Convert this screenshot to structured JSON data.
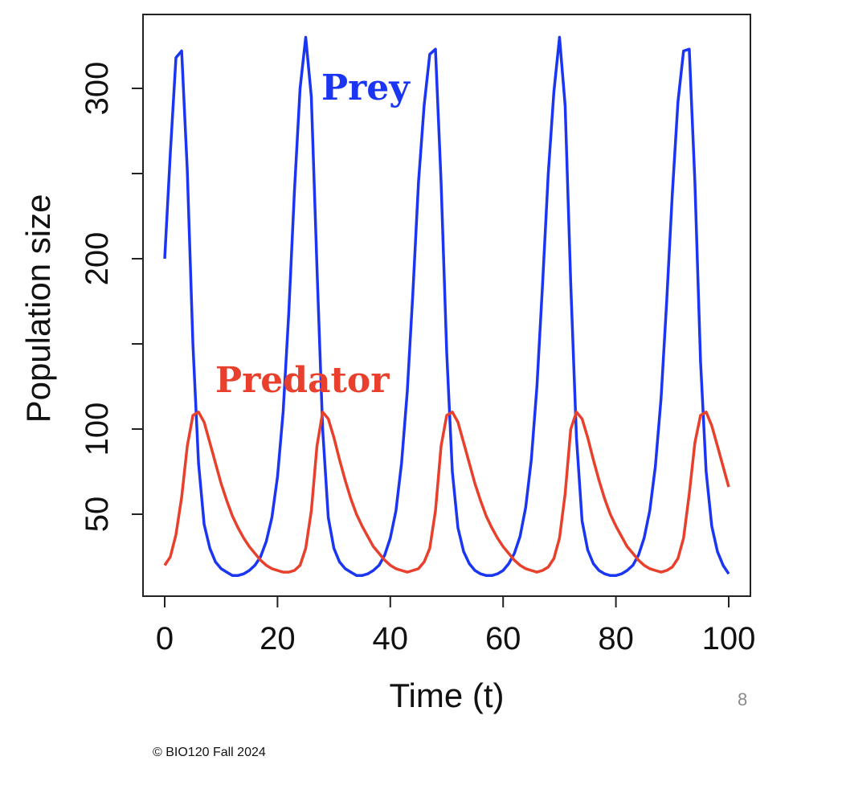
{
  "chart_data": {
    "type": "line",
    "title": "",
    "xlabel": "Time (t)",
    "ylabel": "Population size",
    "xlim": [
      0,
      100
    ],
    "ylim": [
      0,
      335
    ],
    "x_ticks": [
      0,
      20,
      40,
      60,
      80,
      100
    ],
    "y_ticks": [
      50,
      100,
      150,
      200,
      250,
      300
    ],
    "y_tick_labels": [
      "50",
      "100",
      "",
      "200",
      "",
      "300"
    ],
    "grid": false,
    "legend": "none (inline annotations)",
    "annotations": [
      {
        "text": "Prey",
        "series": "Prey",
        "color": "#1a36f2"
      },
      {
        "text": "Predator",
        "series": "Predator",
        "color": "#e8402c"
      }
    ],
    "x": [
      0,
      1,
      2,
      3,
      4,
      5,
      6,
      7,
      8,
      9,
      10,
      11,
      12,
      13,
      14,
      15,
      16,
      17,
      18,
      19,
      20,
      21,
      22,
      23,
      24,
      25,
      26,
      27,
      28,
      29,
      30,
      31,
      32,
      33,
      34,
      35,
      36,
      37,
      38,
      39,
      40,
      41,
      42,
      43,
      44,
      45,
      46,
      47,
      48,
      49,
      50,
      51,
      52,
      53,
      54,
      55,
      56,
      57,
      58,
      59,
      60,
      61,
      62,
      63,
      64,
      65,
      66,
      67,
      68,
      69,
      70,
      71,
      72,
      73,
      74,
      75,
      76,
      77,
      78,
      79,
      80,
      81,
      82,
      83,
      84,
      85,
      86,
      87,
      88,
      89,
      90,
      91,
      92,
      93,
      94,
      95,
      96,
      97,
      98,
      99,
      100
    ],
    "series": [
      {
        "name": "Prey",
        "color": "#1a36f2",
        "values": [
          200,
          262,
          318,
          322,
          252,
          150,
          80,
          44,
          30,
          22,
          18,
          16,
          14,
          14,
          15,
          17,
          20,
          25,
          34,
          48,
          72,
          110,
          168,
          240,
          300,
          330,
          295,
          195,
          100,
          48,
          30,
          22,
          18,
          16,
          14,
          14,
          15,
          17,
          20,
          26,
          36,
          52,
          80,
          122,
          180,
          245,
          290,
          320,
          323,
          245,
          145,
          75,
          42,
          28,
          21,
          17,
          15,
          14,
          14,
          15,
          17,
          21,
          27,
          37,
          54,
          82,
          125,
          185,
          250,
          298,
          330,
          290,
          185,
          95,
          46,
          29,
          21,
          17,
          15,
          14,
          14,
          15,
          17,
          20,
          26,
          36,
          52,
          78,
          118,
          175,
          238,
          292,
          322,
          323,
          245,
          140,
          75,
          43,
          28,
          20,
          15
        ]
      },
      {
        "name": "Predator",
        "color": "#e8402c",
        "values": [
          20,
          25,
          38,
          60,
          90,
          108,
          110,
          104,
          92,
          80,
          68,
          58,
          49,
          42,
          36,
          31,
          27,
          23,
          20,
          18,
          17,
          16,
          16,
          17,
          20,
          30,
          52,
          90,
          110,
          106,
          95,
          82,
          70,
          59,
          50,
          43,
          37,
          31,
          27,
          23,
          20,
          18,
          17,
          16,
          17,
          18,
          22,
          30,
          52,
          90,
          108,
          110,
          104,
          92,
          80,
          68,
          58,
          49,
          42,
          36,
          31,
          27,
          23,
          20,
          18,
          17,
          16,
          17,
          19,
          24,
          36,
          62,
          100,
          110,
          106,
          95,
          82,
          70,
          59,
          50,
          43,
          37,
          31,
          27,
          23,
          20,
          18,
          17,
          16,
          17,
          19,
          24,
          36,
          62,
          92,
          108,
          110,
          102,
          90,
          78,
          66
        ]
      }
    ]
  },
  "footer": {
    "page_number": "8",
    "copyright": "© BIO120 Fall 2024"
  }
}
